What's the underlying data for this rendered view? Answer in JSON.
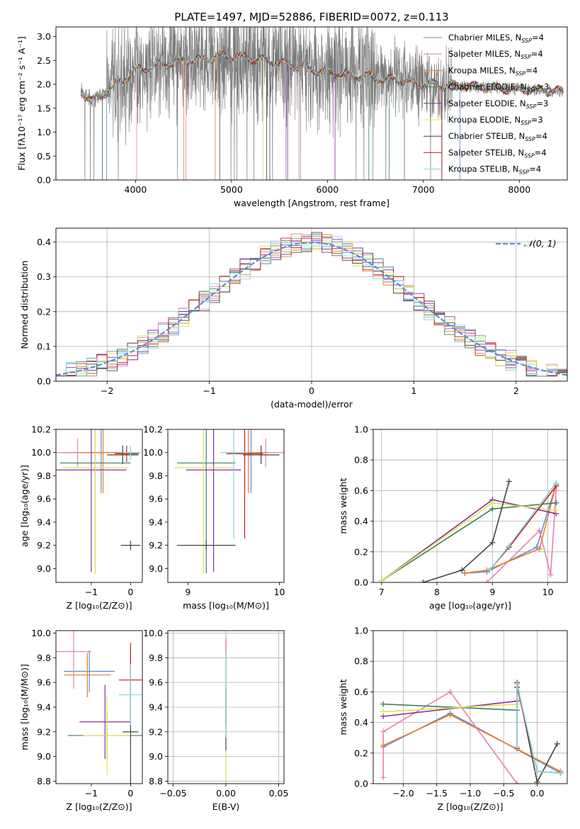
{
  "figure_title": "PLATE=1497, MJD=52886, FIBERID=0072, z=0.113",
  "colors": {
    "Chabrier MILES": "#5b8bd5",
    "Salpeter MILES": "#e87fb3",
    "Kroupa MILES": "#f07d1e",
    "Chabrier ELODIE": "#3f7f5f",
    "Salpeter ELODIE": "#8c2aa4",
    "Kroupa ELODIE": "#d8e84a",
    "Chabrier STELIB": "#444444",
    "Salpeter STELIB": "#c41e1e",
    "Kroupa STELIB": "#7fd8e0"
  },
  "legend_spectrum": [
    {
      "label": "Chabrier MILES, N",
      "sub": "SSP",
      "tail": "=4"
    },
    {
      "label": "Salpeter MILES, N",
      "sub": "SSP",
      "tail": "=4"
    },
    {
      "label": "Kroupa MILES, N",
      "sub": "SSP",
      "tail": "=4"
    },
    {
      "label": "Chabrier ELODIE, N",
      "sub": "SSP",
      "tail": "=3"
    },
    {
      "label": "Salpeter ELODIE, N",
      "sub": "SSP",
      "tail": "=3"
    },
    {
      "label": "Kroupa ELODIE, N",
      "sub": "SSP",
      "tail": "=3"
    },
    {
      "label": "Chabrier STELIB, N",
      "sub": "SSP",
      "tail": "=4"
    },
    {
      "label": "Salpeter STELIB, N",
      "sub": "SSP",
      "tail": "=4"
    },
    {
      "label": "Kroupa STELIB, N",
      "sub": "SSP",
      "tail": "=4"
    }
  ],
  "chart_data": [
    {
      "id": "spectrum",
      "type": "line",
      "xlabel": "wavelength [Angstrom, rest frame]",
      "ylabel": "Flux [fλ10⁻¹⁷ erg cm⁻² s⁻¹ A⁻¹]",
      "xlim": [
        3170,
        8500
      ],
      "ylim": [
        0,
        3.2
      ],
      "xticks": [
        4000,
        5000,
        6000,
        7000,
        8000
      ],
      "yticks": [
        0.0,
        0.5,
        1.0,
        1.5,
        2.0,
        2.5,
        3.0
      ],
      "ytick_labels": [
        "0.0",
        "0.5",
        "1.0",
        "1.5",
        "2.0",
        "2.5",
        "3.0"
      ],
      "data_range": [
        3430,
        8460
      ],
      "continuum": [
        [
          3430,
          1.85
        ],
        [
          3550,
          1.65
        ],
        [
          3700,
          1.85
        ],
        [
          4000,
          2.3
        ],
        [
          4500,
          2.5
        ],
        [
          5000,
          2.6
        ],
        [
          5500,
          2.45
        ],
        [
          6000,
          2.25
        ],
        [
          6500,
          2.15
        ],
        [
          7000,
          2.0
        ],
        [
          7500,
          1.95
        ],
        [
          8000,
          1.9
        ],
        [
          8460,
          1.85
        ]
      ]
    },
    {
      "id": "residuals",
      "type": "step",
      "xlabel": "(data-model)/error",
      "ylabel": "Normed distribution",
      "xlim": [
        -2.5,
        2.5
      ],
      "ylim": [
        0,
        0.44
      ],
      "xticks": [
        -2,
        -1,
        0,
        1,
        2
      ],
      "xtick_labels": [
        "−2",
        "−1",
        "0",
        "1",
        "2"
      ],
      "yticks": [
        0.0,
        0.1,
        0.2,
        0.3,
        0.4
      ],
      "ytick_labels": [
        "0.0",
        "0.1",
        "0.2",
        "0.3",
        "0.4"
      ],
      "grid": true,
      "legend": "𝒩(0, 1)",
      "bin_edges_start": -2.5,
      "bin_width": 0.1
    },
    {
      "id": "age_vs_Z",
      "type": "errorbar",
      "xlabel": "Z [log₁₀(Z/Z⊙)]",
      "ylabel": "age  [log₁₀(age/yr)]",
      "xlim": [
        -1.9,
        0.3
      ],
      "ylim": [
        8.88,
        10.2
      ],
      "xticks": [
        -1,
        0
      ],
      "xtick_labels": [
        "−1",
        "0"
      ],
      "yticks": [
        9.0,
        9.2,
        9.4,
        9.6,
        9.8,
        10.0,
        10.2
      ],
      "ytick_labels": [
        "9.0",
        "9.2",
        "9.4",
        "9.6",
        "9.8",
        "10.0",
        "10.2"
      ],
      "points": [
        {
          "model": "Chabrier MILES",
          "x": -0.75,
          "xerr": 1.0,
          "y": 10.0,
          "yerr": 0.35
        },
        {
          "model": "Salpeter MILES",
          "x": -1.35,
          "xerr": 1.0,
          "y": 10.0,
          "yerr": 0.12
        },
        {
          "model": "Kroupa MILES",
          "x": -0.7,
          "xerr": 0.6,
          "y": 10.0,
          "yerr": 0.35
        },
        {
          "model": "Chabrier ELODIE",
          "x": -0.9,
          "xerr": 0.9,
          "y": 9.91,
          "yerr": 0.95
        },
        {
          "model": "Salpeter ELODIE",
          "x": -1.0,
          "xerr": 0.9,
          "y": 9.85,
          "yerr": 0.88
        },
        {
          "model": "Kroupa ELODIE",
          "x": -0.9,
          "xerr": 0.85,
          "y": 9.87,
          "yerr": 0.92
        },
        {
          "model": "Chabrier STELIB",
          "x": -0.2,
          "xerr": 0.4,
          "y": 9.98,
          "yerr": 0.08
        },
        {
          "model": "Salpeter STELIB",
          "x": -0.1,
          "xerr": 0.3,
          "y": 9.99,
          "yerr": 0.07
        },
        {
          "model": "Kroupa STELIB",
          "x": 0.0,
          "xerr": 0.2,
          "y": 10.0,
          "yerr": 0.06
        },
        {
          "model": "Chabrier STELIB",
          "x": 0.0,
          "xerr": 0.25,
          "y": 9.2,
          "yerr": 0.04
        }
      ]
    },
    {
      "id": "age_vs_mass",
      "type": "errorbar",
      "xlabel": "mass [log₁₀(M/M⊙)]",
      "ylabel": "",
      "xlim": [
        8.78,
        10.05
      ],
      "ylim": [
        8.88,
        10.2
      ],
      "xticks": [
        9,
        10
      ],
      "xtick_labels": [
        "9",
        "10"
      ],
      "yticks": [
        9.0,
        9.2,
        9.4,
        9.6,
        9.8,
        10.0,
        10.2
      ],
      "ytick_labels": [
        "9.0",
        "9.2",
        "9.4",
        "9.6",
        "9.8",
        "10.0",
        "10.2"
      ],
      "points": [
        {
          "model": "Chabrier MILES",
          "x": 9.69,
          "xerr": 0.2,
          "y": 10.0,
          "yerr": 0.35
        },
        {
          "model": "Salpeter MILES",
          "x": 9.85,
          "xerr": 0.3,
          "y": 10.0,
          "yerr": 0.12
        },
        {
          "model": "Kroupa MILES",
          "x": 9.66,
          "xerr": 0.2,
          "y": 10.0,
          "yerr": 0.35
        },
        {
          "model": "Chabrier ELODIE",
          "x": 9.2,
          "xerr": 0.32,
          "y": 9.91,
          "yerr": 0.95
        },
        {
          "model": "Salpeter ELODIE",
          "x": 9.28,
          "xerr": 0.3,
          "y": 9.85,
          "yerr": 0.88
        },
        {
          "model": "Kroupa ELODIE",
          "x": 9.17,
          "xerr": 0.32,
          "y": 9.87,
          "yerr": 0.92
        },
        {
          "model": "Chabrier STELIB",
          "x": 9.8,
          "xerr": 0.2,
          "y": 9.98,
          "yerr": 0.08
        },
        {
          "model": "Salpeter STELIB",
          "x": 9.62,
          "xerr": 0.2,
          "y": 9.99,
          "yerr": 0.73
        },
        {
          "model": "Kroupa STELIB",
          "x": 9.5,
          "xerr": 0.15,
          "y": 10.0,
          "yerr": 0.74
        },
        {
          "model": "Chabrier STELIB",
          "x": 9.2,
          "xerr": 0.32,
          "y": 9.2,
          "yerr": 0.04
        }
      ]
    },
    {
      "id": "weight_vs_age",
      "type": "line",
      "xlabel": "age  [log₁₀(age/yr)]",
      "ylabel": "mass weight",
      "xlim": [
        6.85,
        10.35
      ],
      "ylim": [
        0,
        1.0
      ],
      "xticks": [
        7,
        8,
        9,
        10
      ],
      "xtick_labels": [
        "7",
        "8",
        "9",
        "10"
      ],
      "yticks": [
        0.0,
        0.2,
        0.4,
        0.6,
        0.8,
        1.0
      ],
      "ytick_labels": [
        "0.0",
        "0.2",
        "0.4",
        "0.6",
        "0.8",
        "1.0"
      ],
      "grid": true,
      "series": [
        {
          "model": "Chabrier MILES",
          "x": [
            8.5,
            8.9,
            9.8,
            10.15
          ],
          "y": [
            0.06,
            0.07,
            0.23,
            0.64
          ]
        },
        {
          "model": "Salpeter MILES",
          "x": [
            8.9,
            9.85,
            10.05,
            10.15
          ],
          "y": [
            0.0,
            0.34,
            0.05,
            0.6
          ]
        },
        {
          "model": "Kroupa MILES",
          "x": [
            8.5,
            8.9,
            9.85,
            10.15
          ],
          "y": [
            0.06,
            0.08,
            0.22,
            0.64
          ]
        },
        {
          "model": "Chabrier ELODIE",
          "x": [
            7.0,
            9.0,
            10.15
          ],
          "y": [
            0.01,
            0.48,
            0.52
          ]
        },
        {
          "model": "Salpeter ELODIE",
          "x": [
            7.0,
            9.0,
            10.15
          ],
          "y": [
            0.01,
            0.54,
            0.45
          ]
        },
        {
          "model": "Kroupa ELODIE",
          "x": [
            7.0,
            9.0,
            10.15
          ],
          "y": [
            0.01,
            0.52,
            0.47
          ]
        },
        {
          "model": "Chabrier STELIB",
          "x": [
            7.75,
            8.45,
            9.0,
            9.3
          ],
          "y": [
            0.0,
            0.08,
            0.26,
            0.66
          ]
        },
        {
          "model": "Salpeter STELIB",
          "x": [
            8.95,
            9.3,
            10.15
          ],
          "y": [
            0.08,
            0.23,
            0.63
          ]
        },
        {
          "model": "Kroupa STELIB",
          "x": [
            8.95,
            9.3,
            10.15
          ],
          "y": [
            0.08,
            0.24,
            0.65
          ]
        }
      ]
    },
    {
      "id": "mass_vs_Z",
      "type": "errorbar",
      "xlabel": "Z [log₁₀(Z/Z⊙)]",
      "ylabel": "mass [log₁₀(M/M⊙)]",
      "xlim": [
        -1.9,
        0.3
      ],
      "ylim": [
        8.78,
        10.02
      ],
      "xticks": [
        -1,
        0
      ],
      "xtick_labels": [
        "−1",
        "0"
      ],
      "yticks": [
        8.8,
        9.0,
        9.2,
        9.4,
        9.6,
        9.8,
        10.0
      ],
      "ytick_labels": [
        "8.8",
        "9.0",
        "9.2",
        "9.4",
        "9.6",
        "9.8",
        "10.0"
      ],
      "points": [
        {
          "model": "Chabrier MILES",
          "x": -1.05,
          "xerr": 0.65,
          "y": 9.69,
          "yerr": 0.17
        },
        {
          "model": "Salpeter MILES",
          "x": -1.45,
          "xerr": 0.45,
          "y": 9.85,
          "yerr": 0.3
        },
        {
          "model": "Kroupa MILES",
          "x": -1.1,
          "xerr": 0.6,
          "y": 9.66,
          "yerr": 0.18
        },
        {
          "model": "Chabrier ELODIE",
          "x": -0.6,
          "xerr": 1.0,
          "y": 9.17,
          "yerr": 0.2
        },
        {
          "model": "Salpeter ELODIE",
          "x": -0.65,
          "xerr": 0.65,
          "y": 9.28,
          "yerr": 0.3
        },
        {
          "model": "Kroupa ELODIE",
          "x": -0.6,
          "xerr": 0.6,
          "y": 9.17,
          "yerr": 0.32
        },
        {
          "model": "Chabrier STELIB",
          "x": 0.0,
          "xerr": 0.2,
          "y": 9.2,
          "yerr": 0.6
        },
        {
          "model": "Salpeter STELIB",
          "x": 0.0,
          "xerr": 0.3,
          "y": 9.62,
          "yerr": 0.3
        },
        {
          "model": "Kroupa STELIB",
          "x": 0.0,
          "xerr": 0.3,
          "y": 9.5,
          "yerr": 0.25
        }
      ]
    },
    {
      "id": "mass_vs_EBV",
      "type": "errorbar",
      "xlabel": "E(B-V)",
      "ylabel": "",
      "xlim": [
        -0.055,
        0.055
      ],
      "ylim": [
        8.78,
        10.02
      ],
      "xticks": [
        -0.05,
        0.0,
        0.05
      ],
      "xtick_labels": [
        "−0.05",
        "0.00",
        "0.05"
      ],
      "yticks": [
        8.8,
        9.0,
        9.2,
        9.4,
        9.6,
        9.8,
        10.0
      ],
      "ytick_labels": [
        "8.8",
        "9.0",
        "9.2",
        "9.4",
        "9.6",
        "9.8",
        "10.0"
      ],
      "grid": true,
      "points": [
        {
          "model": "Kroupa ELODIE",
          "x": 0.0,
          "xerr": 0.0,
          "y": 9.25,
          "yerr": 0.45
        },
        {
          "model": "Chabrier STELIB",
          "x": 0.0,
          "xerr": 0.0,
          "y": 9.3,
          "yerr": 0.25
        },
        {
          "model": "Salpeter STELIB",
          "x": 0.0,
          "xerr": 0.0,
          "y": 9.6,
          "yerr": 0.35
        },
        {
          "model": "Salpeter MILES",
          "x": 0.0,
          "xerr": 0.0,
          "y": 9.85,
          "yerr": 0.12
        },
        {
          "model": "Kroupa STELIB",
          "x": 0.0,
          "xerr": 0.0,
          "y": 9.5,
          "yerr": 0.35
        }
      ]
    },
    {
      "id": "weight_vs_Z",
      "type": "line",
      "xlabel": "Z [log₁₀(Z/Z⊙)]",
      "ylabel": "mass weight",
      "xlim": [
        -2.45,
        0.45
      ],
      "ylim": [
        0,
        1.0
      ],
      "xticks": [
        -2.0,
        -1.5,
        -1.0,
        -0.5,
        0.0
      ],
      "xtick_labels": [
        "−2.0",
        "−1.5",
        "−1.0",
        "−0.5",
        "0.0"
      ],
      "yticks": [
        0.0,
        0.2,
        0.4,
        0.6,
        0.8,
        1.0
      ],
      "ytick_labels": [
        "0.0",
        "0.2",
        "0.4",
        "0.6",
        "0.8",
        "1.0"
      ],
      "grid": true,
      "series": [
        {
          "model": "Chabrier MILES",
          "x": [
            -2.3,
            -1.3,
            0.35
          ],
          "y": [
            0.24,
            0.46,
            0.07
          ]
        },
        {
          "model": "Salpeter MILES",
          "x": [
            -2.3,
            -2.3,
            -1.3,
            -0.3
          ],
          "y": [
            0.04,
            0.34,
            0.6,
            0.0
          ]
        },
        {
          "model": "Kroupa MILES",
          "x": [
            -2.3,
            -1.3,
            0.35
          ],
          "y": [
            0.25,
            0.45,
            0.08
          ]
        },
        {
          "model": "Chabrier ELODIE",
          "x": [
            -2.3,
            -0.3
          ],
          "y": [
            0.52,
            0.48
          ]
        },
        {
          "model": "Salpeter ELODIE",
          "x": [
            -2.3,
            -0.3
          ],
          "y": [
            0.44,
            0.54
          ]
        },
        {
          "model": "Kroupa ELODIE",
          "x": [
            -2.3,
            -0.3
          ],
          "y": [
            0.47,
            0.52
          ]
        },
        {
          "model": "Chabrier STELIB",
          "x": [
            -0.3,
            0.0,
            0.3
          ],
          "y": [
            0.66,
            0.01,
            0.26
          ]
        },
        {
          "model": "Salpeter STELIB",
          "x": [
            -0.3,
            -0.3,
            0.0,
            0.35
          ],
          "y": [
            0.23,
            0.63,
            0.08,
            0.07
          ]
        },
        {
          "model": "Kroupa STELIB",
          "x": [
            -0.3,
            -0.3,
            0.0,
            0.35
          ],
          "y": [
            0.24,
            0.65,
            0.08,
            0.07
          ]
        }
      ]
    }
  ]
}
